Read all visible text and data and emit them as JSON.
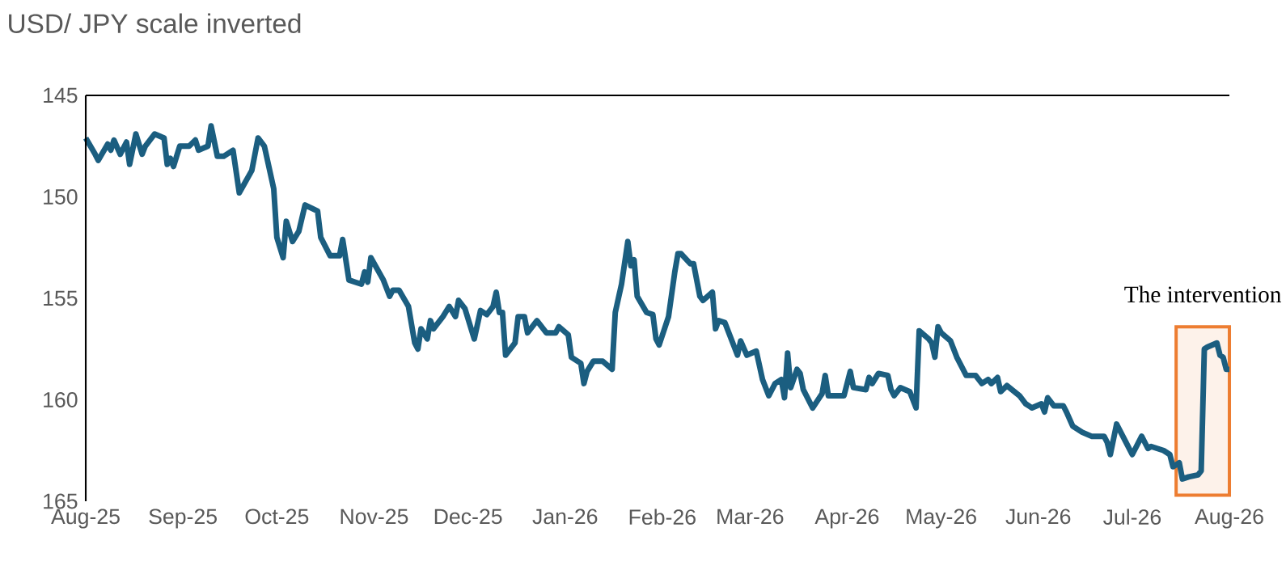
{
  "chart_data": {
    "type": "line",
    "title": "USD/ JPY scale inverted",
    "x": [
      "2025-08-01",
      "2025-08-04",
      "2025-08-05",
      "2025-08-08",
      "2025-08-09",
      "2025-08-10",
      "2025-08-12",
      "2025-08-14",
      "2025-08-15",
      "2025-08-17",
      "2025-08-19",
      "2025-08-20",
      "2025-08-23",
      "2025-08-26",
      "2025-08-27",
      "2025-08-28",
      "2025-08-29",
      "2025-08-31",
      "2025-09-03",
      "2025-09-05",
      "2025-09-06",
      "2025-09-09",
      "2025-09-10",
      "2025-09-12",
      "2025-09-14",
      "2025-09-17",
      "2025-09-19",
      "2025-09-23",
      "2025-09-25",
      "2025-09-27",
      "2025-09-30",
      "2025-10-01",
      "2025-10-03",
      "2025-10-04",
      "2025-10-06",
      "2025-10-08",
      "2025-10-10",
      "2025-10-14",
      "2025-10-15",
      "2025-10-18",
      "2025-10-21",
      "2025-10-22",
      "2025-10-24",
      "2025-10-26",
      "2025-10-28",
      "2025-10-29",
      "2025-10-30",
      "2025-10-31",
      "2025-11-04",
      "2025-11-06",
      "2025-11-07",
      "2025-11-09",
      "2025-11-12",
      "2025-11-14",
      "2025-11-15",
      "2025-11-16",
      "2025-11-18",
      "2025-11-19",
      "2025-11-20",
      "2025-11-23",
      "2025-11-25",
      "2025-11-27",
      "2025-11-28",
      "2025-11-30",
      "2025-12-03",
      "2025-12-05",
      "2025-12-07",
      "2025-12-09",
      "2025-12-10",
      "2025-12-11",
      "2025-12-12",
      "2025-12-13",
      "2025-12-16",
      "2025-12-17",
      "2025-12-19",
      "2025-12-20",
      "2025-12-23",
      "2025-12-26",
      "2025-12-29",
      "2025-12-30",
      "2026-01-02",
      "2026-01-03",
      "2026-01-06",
      "2026-01-07",
      "2026-01-08",
      "2026-01-10",
      "2026-01-13",
      "2026-01-16",
      "2026-01-17",
      "2026-01-19",
      "2026-01-21",
      "2026-01-22",
      "2026-01-23",
      "2026-01-24",
      "2026-01-27",
      "2026-01-29",
      "2026-01-30",
      "2026-01-31",
      "2026-02-03",
      "2026-02-05",
      "2026-02-06",
      "2026-02-07",
      "2026-02-10",
      "2026-02-11",
      "2026-02-13",
      "2026-02-14",
      "2026-02-17",
      "2026-02-18",
      "2026-02-19",
      "2026-02-21",
      "2026-02-25",
      "2026-02-26",
      "2026-02-28",
      "2026-03-03",
      "2026-03-05",
      "2026-03-07",
      "2026-03-09",
      "2026-03-11",
      "2026-03-12",
      "2026-03-13",
      "2026-03-14",
      "2026-03-16",
      "2026-03-17",
      "2026-03-18",
      "2026-03-21",
      "2026-03-24",
      "2026-03-25",
      "2026-03-26",
      "2026-03-31",
      "2026-04-02",
      "2026-04-03",
      "2026-04-07",
      "2026-04-08",
      "2026-04-09",
      "2026-04-11",
      "2026-04-14",
      "2026-04-15",
      "2026-04-16",
      "2026-04-18",
      "2026-04-21",
      "2026-04-23",
      "2026-04-24",
      "2026-04-27",
      "2026-04-28",
      "2026-04-29",
      "2026-04-30",
      "2026-05-01",
      "2026-05-04",
      "2026-05-06",
      "2026-05-09",
      "2026-05-12",
      "2026-05-14",
      "2026-05-16",
      "2026-05-17",
      "2026-05-19",
      "2026-05-20",
      "2026-05-22",
      "2026-05-26",
      "2026-05-28",
      "2026-05-30",
      "2026-06-02",
      "2026-06-03",
      "2026-06-04",
      "2026-06-06",
      "2026-06-09",
      "2026-06-10",
      "2026-06-12",
      "2026-06-15",
      "2026-06-18",
      "2026-06-22",
      "2026-06-23",
      "2026-06-24",
      "2026-06-26",
      "2026-06-28",
      "2026-06-29",
      "2026-07-01",
      "2026-07-04",
      "2026-07-06",
      "2026-07-07",
      "2026-07-09",
      "2026-07-11",
      "2026-07-13",
      "2026-07-14",
      "2026-07-16",
      "2026-07-17",
      "2026-07-19",
      "2026-07-22",
      "2026-07-23",
      "2026-07-24",
      "2026-07-25",
      "2026-07-28",
      "2026-07-29",
      "2026-07-30",
      "2026-07-31",
      "2026-08-01"
    ],
    "series": [
      {
        "color": "#1b5e80",
        "values": [
          147.1,
          147.9,
          148.2,
          147.4,
          147.7,
          147.2,
          147.9,
          147.3,
          148.4,
          146.9,
          147.9,
          147.5,
          146.9,
          147.1,
          148.4,
          148.1,
          148.5,
          147.5,
          147.5,
          147.2,
          147.7,
          147.5,
          146.5,
          148.0,
          148.0,
          147.7,
          149.8,
          148.7,
          147.1,
          147.5,
          149.6,
          152.0,
          153.0,
          151.2,
          152.2,
          151.7,
          150.4,
          150.7,
          152.0,
          152.9,
          152.9,
          152.1,
          154.1,
          154.2,
          154.3,
          153.7,
          154.2,
          153.0,
          154.1,
          154.9,
          154.6,
          154.6,
          155.4,
          157.2,
          157.5,
          156.5,
          157.0,
          156.1,
          156.5,
          155.9,
          155.4,
          155.9,
          155.1,
          155.5,
          157.0,
          155.6,
          155.8,
          155.4,
          154.7,
          155.7,
          155.7,
          157.8,
          157.2,
          155.9,
          155.9,
          156.7,
          156.1,
          156.7,
          156.7,
          156.4,
          156.8,
          157.9,
          158.2,
          159.2,
          158.6,
          158.1,
          158.1,
          158.5,
          155.7,
          154.3,
          152.2,
          153.4,
          153.1,
          154.9,
          155.7,
          155.8,
          157.0,
          157.3,
          155.9,
          153.7,
          152.8,
          152.8,
          153.3,
          153.3,
          154.9,
          155.1,
          154.7,
          156.5,
          156.1,
          156.2,
          157.8,
          157.1,
          157.8,
          157.6,
          159.0,
          159.8,
          159.2,
          159.0,
          159.9,
          157.7,
          159.4,
          158.5,
          158.7,
          159.5,
          160.4,
          159.7,
          158.8,
          159.8,
          159.8,
          158.6,
          159.4,
          159.5,
          158.9,
          159.2,
          158.7,
          158.8,
          159.5,
          159.8,
          159.4,
          159.6,
          160.4,
          156.6,
          157.0,
          157.2,
          157.9,
          156.4,
          156.7,
          157.1,
          157.9,
          158.8,
          158.8,
          159.2,
          159.0,
          159.2,
          158.9,
          159.6,
          159.3,
          159.8,
          160.2,
          160.4,
          160.2,
          160.6,
          159.9,
          160.3,
          160.3,
          160.6,
          161.3,
          161.6,
          161.8,
          161.8,
          162.1,
          162.7,
          161.2,
          161.8,
          162.1,
          162.7,
          161.8,
          162.4,
          162.3,
          162.4,
          162.5,
          162.7,
          163.3,
          163.1,
          163.9,
          163.8,
          163.7,
          163.5,
          157.5,
          157.4,
          157.2,
          157.8,
          157.9,
          158.5,
          158.5
        ]
      }
    ],
    "xlim": [
      "2025-08-01",
      "2026-08-01"
    ],
    "xticks": [
      {
        "value": "2025-08-01",
        "label": "Aug-25"
      },
      {
        "value": "2025-09-01",
        "label": "Sep-25"
      },
      {
        "value": "2025-10-01",
        "label": "Oct-25"
      },
      {
        "value": "2025-11-01",
        "label": "Nov-25"
      },
      {
        "value": "2025-12-01",
        "label": "Dec-25"
      },
      {
        "value": "2026-01-01",
        "label": "Jan-26"
      },
      {
        "value": "2026-02-01",
        "label": "Feb-26"
      },
      {
        "value": "2026-03-01",
        "label": "Mar-26"
      },
      {
        "value": "2026-04-01",
        "label": "Apr-26"
      },
      {
        "value": "2026-05-01",
        "label": "May-26"
      },
      {
        "value": "2026-06-01",
        "label": "Jun-26"
      },
      {
        "value": "2026-07-01",
        "label": "Jul-26"
      },
      {
        "value": "2026-08-01",
        "label": "Aug-26"
      }
    ],
    "ylim": [
      165,
      145
    ],
    "yticks": [
      145,
      150,
      155,
      160,
      165
    ],
    "grid": false,
    "bands": [
      {
        "axis": "x",
        "from": "2026-07-15",
        "to": "2026-08-01",
        "label": "The intervention",
        "color": "#ed7d31"
      }
    ]
  }
}
